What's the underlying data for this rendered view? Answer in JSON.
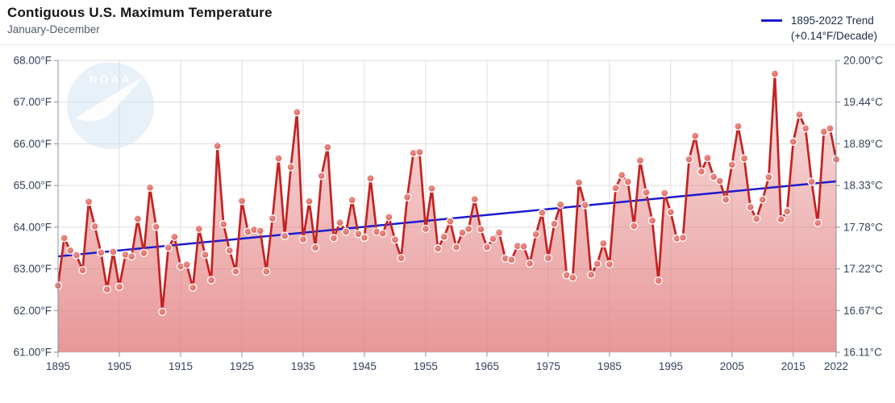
{
  "header": {
    "title": "Contiguous U.S. Maximum Temperature",
    "subtitle": "January-December"
  },
  "legend": {
    "line1": "1895-2022 Trend",
    "line2": "(+0.14°F/Decade)"
  },
  "watermark_text": "NOAA",
  "colors": {
    "series_line": "#c42222",
    "marker_fill": "#db625a",
    "marker_edge": "#ffffff",
    "trend_line": "#1b1bd1",
    "area_top": "rgba(226,122,122,0.20)",
    "area_bottom": "rgba(226,122,122,0.78)",
    "grid": "#dcdcdc",
    "axis": "#8a9099",
    "tick_label": "#33415c",
    "watermark_blue": "#cde0f0"
  },
  "chart_data": {
    "type": "line",
    "title": "Contiguous U.S. Maximum Temperature",
    "subtitle": "January-December",
    "legend_position": "top-right",
    "grid": true,
    "ylim_f": [
      61,
      68
    ],
    "yticks_left": [
      "68.00°F",
      "67.00°F",
      "66.00°F",
      "65.00°F",
      "64.00°F",
      "63.00°F",
      "62.00°F",
      "61.00°F"
    ],
    "yticks_right": [
      "20.00°C",
      "19.44°C",
      "18.89°C",
      "18.33°C",
      "17.78°C",
      "17.22°C",
      "16.67°C",
      "16.11°C"
    ],
    "xticks": [
      1895,
      1905,
      1915,
      1925,
      1935,
      1945,
      1955,
      1965,
      1975,
      1985,
      1995,
      2005,
      2015,
      2022
    ],
    "years": [
      1895,
      1896,
      1897,
      1898,
      1899,
      1900,
      1901,
      1902,
      1903,
      1904,
      1905,
      1906,
      1907,
      1908,
      1909,
      1910,
      1911,
      1912,
      1913,
      1914,
      1915,
      1916,
      1917,
      1918,
      1919,
      1920,
      1921,
      1922,
      1923,
      1924,
      1925,
      1926,
      1927,
      1928,
      1929,
      1930,
      1931,
      1932,
      1933,
      1934,
      1935,
      1936,
      1937,
      1938,
      1939,
      1940,
      1941,
      1942,
      1943,
      1944,
      1945,
      1946,
      1947,
      1948,
      1949,
      1950,
      1951,
      1952,
      1953,
      1954,
      1955,
      1956,
      1957,
      1958,
      1959,
      1960,
      1961,
      1962,
      1963,
      1964,
      1965,
      1966,
      1967,
      1968,
      1969,
      1970,
      1971,
      1972,
      1973,
      1974,
      1975,
      1976,
      1977,
      1978,
      1979,
      1980,
      1981,
      1982,
      1983,
      1984,
      1985,
      1986,
      1987,
      1988,
      1989,
      1990,
      1991,
      1992,
      1993,
      1994,
      1995,
      1996,
      1997,
      1998,
      1999,
      2000,
      2001,
      2002,
      2003,
      2004,
      2005,
      2006,
      2007,
      2008,
      2009,
      2010,
      2011,
      2012,
      2013,
      2014,
      2015,
      2016,
      2017,
      2018,
      2019,
      2020,
      2021,
      2022
    ],
    "values_f": [
      62.6,
      63.74,
      63.44,
      63.33,
      62.97,
      64.61,
      64.02,
      63.39,
      62.51,
      63.41,
      62.57,
      63.34,
      63.3,
      64.2,
      63.38,
      64.95,
      64.01,
      61.97,
      63.51,
      63.77,
      63.06,
      63.1,
      62.55,
      63.96,
      63.34,
      62.73,
      65.95,
      64.07,
      63.44,
      62.94,
      64.63,
      63.89,
      63.94,
      63.91,
      62.94,
      64.21,
      65.65,
      63.79,
      65.44,
      66.76,
      63.71,
      64.62,
      63.51,
      65.23,
      65.92,
      63.74,
      64.11,
      63.89,
      64.65,
      63.84,
      63.75,
      65.17,
      63.89,
      63.85,
      64.24,
      63.7,
      63.26,
      64.72,
      65.78,
      65.8,
      63.96,
      64.93,
      63.49,
      63.77,
      64.14,
      63.52,
      63.87,
      63.96,
      64.67,
      63.95,
      63.52,
      63.72,
      63.87,
      63.25,
      63.22,
      63.55,
      63.54,
      63.13,
      63.83,
      64.35,
      63.26,
      64.08,
      64.54,
      62.85,
      62.79,
      65.07,
      64.53,
      62.86,
      63.12,
      63.61,
      63.11,
      64.94,
      65.25,
      65.09,
      64.03,
      65.6,
      64.83,
      64.16,
      62.72,
      64.82,
      64.36,
      63.73,
      63.75,
      65.63,
      66.19,
      65.34,
      65.66,
      65.21,
      65.11,
      64.66,
      65.5,
      66.42,
      65.65,
      64.48,
      64.2,
      64.66,
      65.2,
      67.68,
      64.19,
      64.38,
      66.05,
      66.7,
      66.37,
      65.09,
      64.1,
      66.29,
      66.37,
      65.63
    ],
    "trend": {
      "label": "1895-2022 Trend (+0.14°F/Decade)",
      "rate": "+0.14°F/Decade",
      "start_year": 1895,
      "end_year": 2022,
      "start_value_f": 63.3,
      "end_value_f": 65.1
    }
  }
}
